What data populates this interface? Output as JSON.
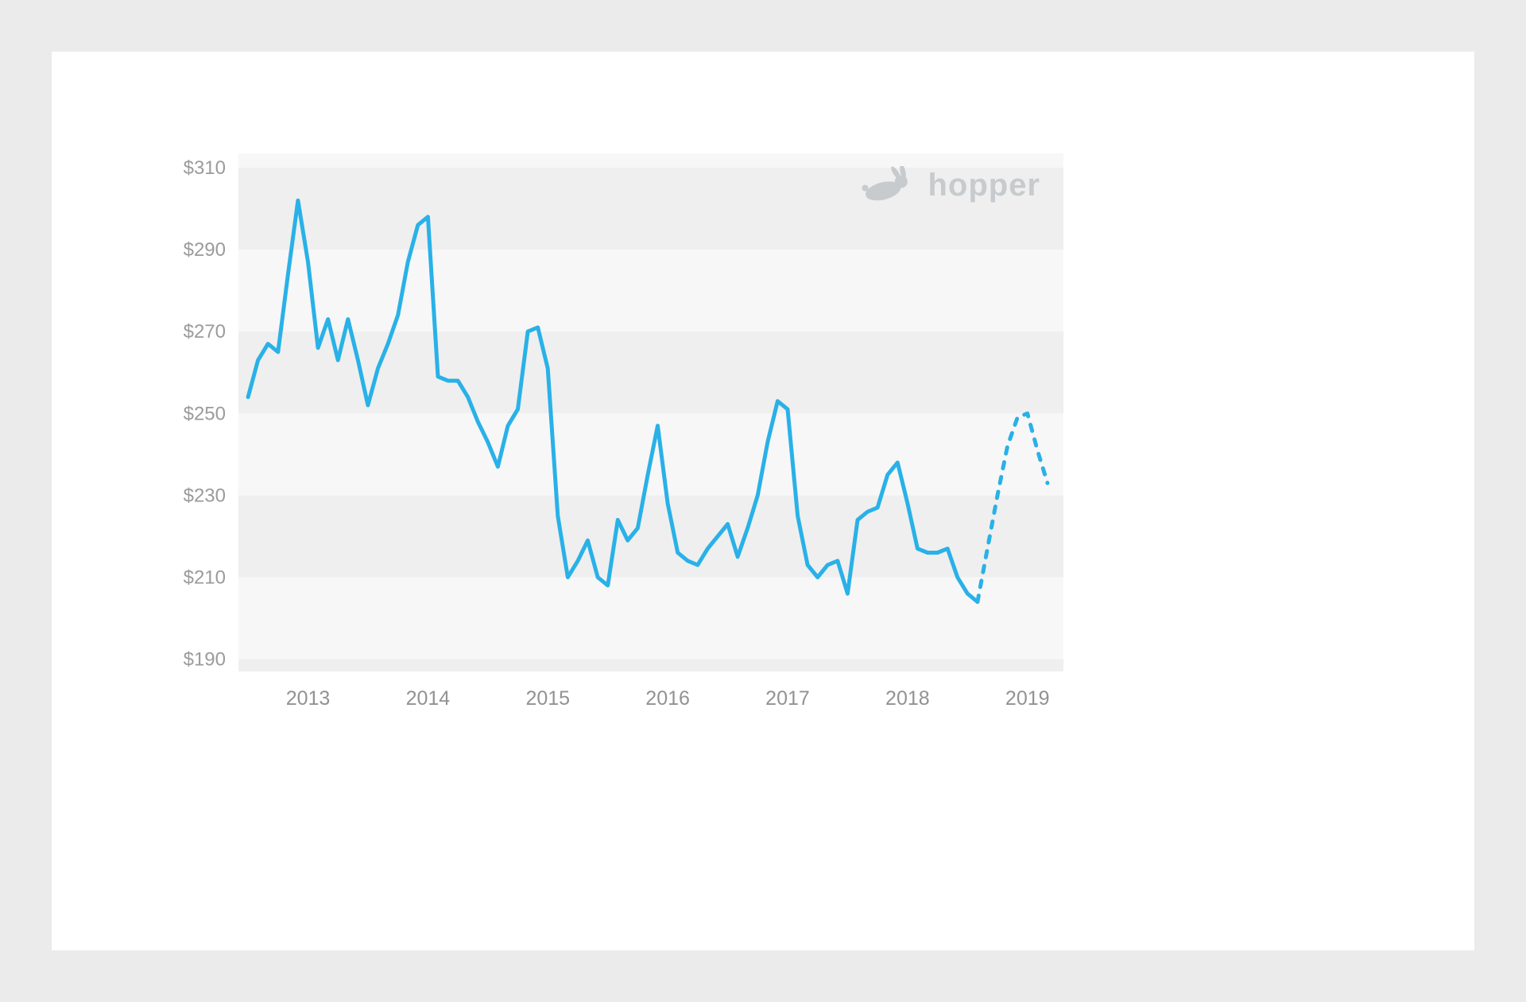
{
  "page": {
    "background_color": "#ebebeb",
    "card_color": "#ffffff"
  },
  "logo": {
    "text": "hopper",
    "color": "#c7cbce"
  },
  "chart_data": {
    "type": "line",
    "title": "",
    "xlabel": "",
    "ylabel": "",
    "grid": "banded-horizontal-stripes",
    "legend": "none",
    "line_color": "#29b1e8",
    "band_colors": [
      "#f7f7f7",
      "#efefef"
    ],
    "x_domain": [
      2012.42,
      2019.3
    ],
    "y_domain": [
      187,
      313.5
    ],
    "y_ticks": [
      190,
      210,
      230,
      250,
      270,
      290,
      310
    ],
    "y_tick_labels": [
      "$190",
      "$210",
      "$230",
      "$250",
      "$270",
      "$290",
      "$310"
    ],
    "x_ticks": [
      2013,
      2014,
      2015,
      2016,
      2017,
      2018,
      2019
    ],
    "x_tick_labels": [
      "2013",
      "2014",
      "2015",
      "2016",
      "2017",
      "2018",
      "2019"
    ],
    "series": [
      {
        "name": "observed-price",
        "style": "solid",
        "start": {
          "year": 2012,
          "month": 7
        },
        "values": [
          254,
          263,
          267,
          265,
          284,
          302,
          287,
          266,
          273,
          263,
          273,
          263,
          252,
          261,
          267,
          274,
          287,
          296,
          298,
          259,
          258,
          258,
          254,
          248,
          243,
          237,
          247,
          251,
          270,
          271,
          261,
          225,
          210,
          214,
          219,
          210,
          208,
          224,
          219,
          222,
          235,
          247,
          228,
          216,
          214,
          213,
          217,
          220,
          223,
          215,
          222,
          230,
          243,
          253,
          251,
          225,
          213,
          210,
          213,
          214,
          206,
          224,
          226,
          227,
          235,
          238,
          228,
          217,
          216,
          216,
          217,
          210,
          206,
          204
        ]
      },
      {
        "name": "forecast-price",
        "style": "dashed",
        "start": {
          "year": 2018,
          "month": 8
        },
        "values": [
          204,
          217,
          230,
          242,
          249,
          250,
          241,
          233
        ]
      }
    ]
  }
}
